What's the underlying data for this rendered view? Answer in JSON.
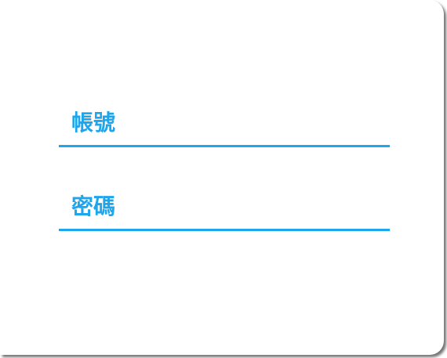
{
  "login_form": {
    "account": {
      "label": "帳號",
      "value": "",
      "placeholder": ""
    },
    "password": {
      "label": "密碼",
      "value": "",
      "placeholder": ""
    }
  },
  "colors": {
    "accent": "#1ea6ec",
    "background": "#ffffff"
  }
}
